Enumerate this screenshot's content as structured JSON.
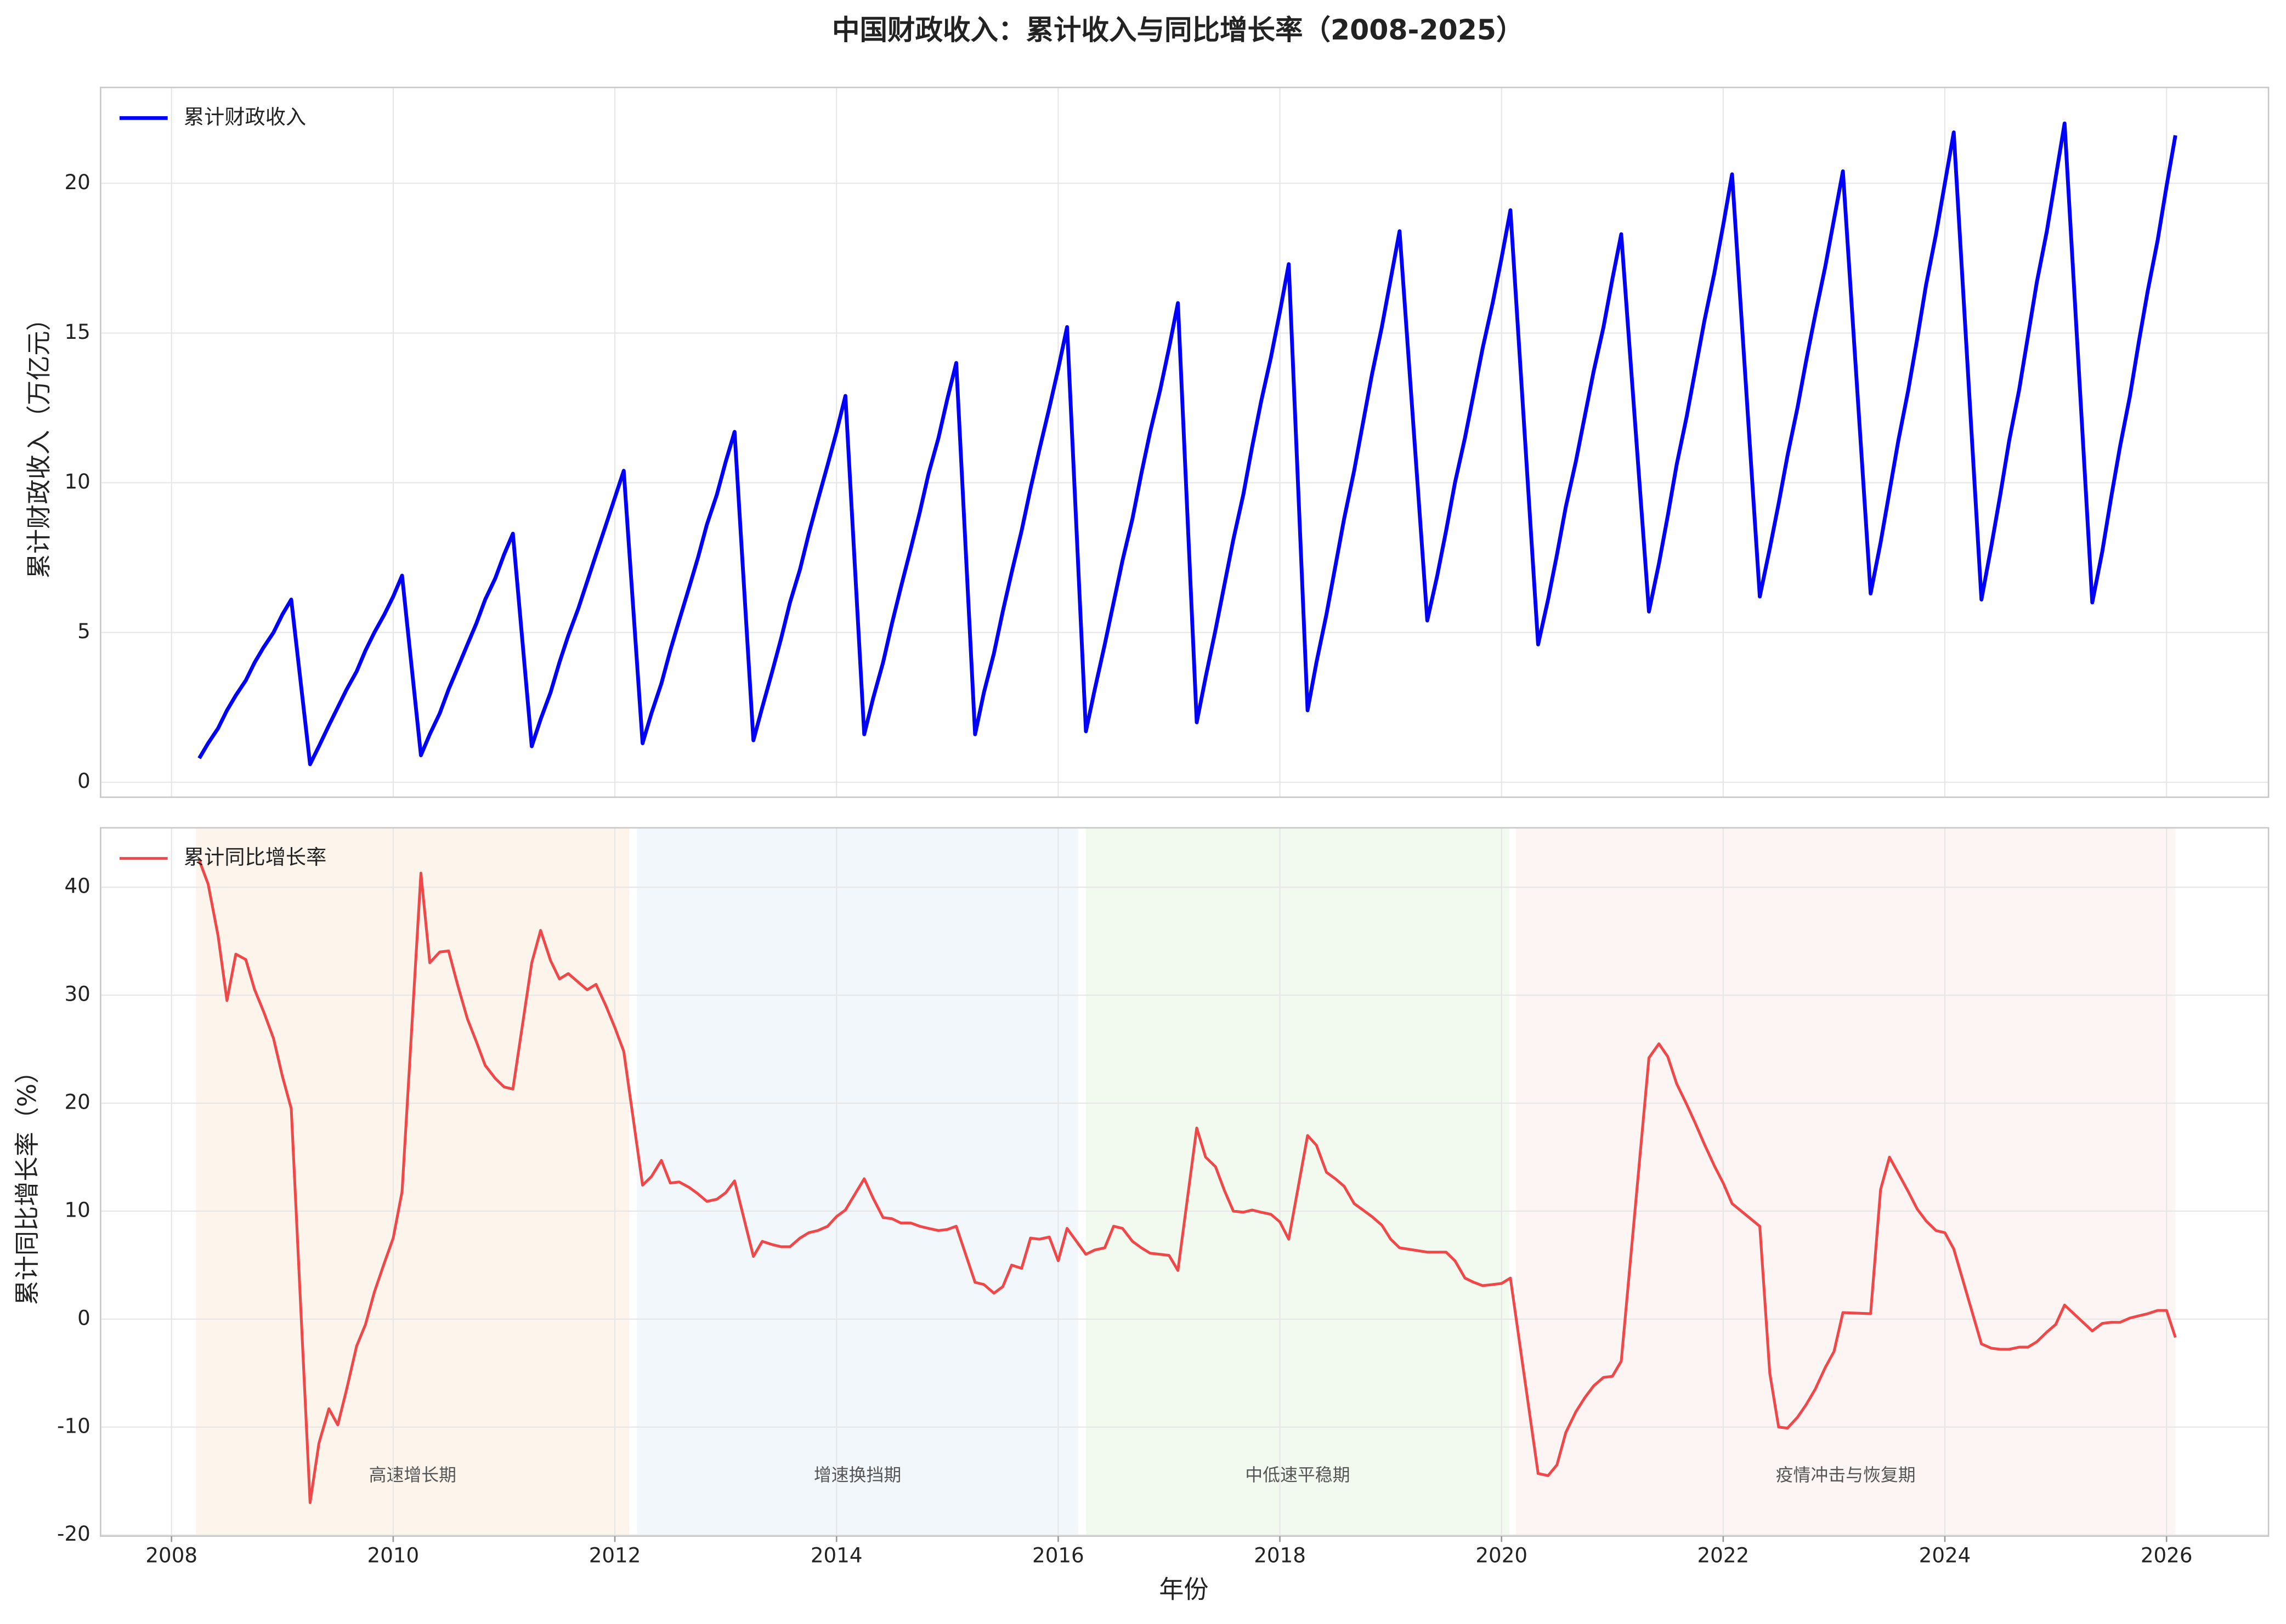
{
  "chart_data": {
    "type": "line",
    "title": "中国财政收入：累计收入与同比增长率（2008-2025）",
    "xlabel": "年份",
    "xlim": [
      2007.36,
      2026.92
    ],
    "xticks": [
      2008,
      2010,
      2012,
      2014,
      2016,
      2018,
      2020,
      2022,
      2024,
      2026
    ],
    "grid": true,
    "x": [
      2008.25,
      2008.33,
      2008.42,
      2008.5,
      2008.58,
      2008.67,
      2008.75,
      2008.83,
      2008.92,
      2009,
      2009.08,
      2009.25,
      2009.33,
      2009.42,
      2009.5,
      2009.58,
      2009.67,
      2009.75,
      2009.83,
      2009.92,
      2010,
      2010.08,
      2010.25,
      2010.33,
      2010.42,
      2010.5,
      2010.58,
      2010.67,
      2010.75,
      2010.83,
      2010.92,
      2011,
      2011.08,
      2011.25,
      2011.33,
      2011.42,
      2011.5,
      2011.58,
      2011.67,
      2011.75,
      2011.83,
      2011.92,
      2012,
      2012.08,
      2012.25,
      2012.33,
      2012.42,
      2012.5,
      2012.58,
      2012.67,
      2012.75,
      2012.83,
      2012.92,
      2013,
      2013.08,
      2013.25,
      2013.33,
      2013.42,
      2013.5,
      2013.58,
      2013.67,
      2013.75,
      2013.83,
      2013.92,
      2014,
      2014.08,
      2014.25,
      2014.33,
      2014.42,
      2014.5,
      2014.58,
      2014.67,
      2014.75,
      2014.83,
      2014.92,
      2015,
      2015.08,
      2015.25,
      2015.33,
      2015.42,
      2015.5,
      2015.58,
      2015.67,
      2015.75,
      2015.83,
      2015.92,
      2016,
      2016.08,
      2016.25,
      2016.33,
      2016.42,
      2016.5,
      2016.58,
      2016.67,
      2016.75,
      2016.83,
      2016.92,
      2017,
      2017.08,
      2017.25,
      2017.33,
      2017.42,
      2017.5,
      2017.58,
      2017.67,
      2017.75,
      2017.83,
      2017.92,
      2018,
      2018.08,
      2018.25,
      2018.33,
      2018.42,
      2018.5,
      2018.58,
      2018.67,
      2018.75,
      2018.83,
      2018.92,
      2019,
      2019.08,
      2019.33,
      2019.42,
      2019.5,
      2019.58,
      2019.67,
      2019.75,
      2019.83,
      2019.92,
      2020,
      2020.08,
      2020.33,
      2020.42,
      2020.5,
      2020.58,
      2020.67,
      2020.75,
      2020.83,
      2020.92,
      2021,
      2021.08,
      2021.33,
      2021.42,
      2021.5,
      2021.58,
      2021.67,
      2021.75,
      2021.83,
      2021.92,
      2022,
      2022.08,
      2022.33,
      2022.42,
      2022.5,
      2022.58,
      2022.67,
      2022.75,
      2022.83,
      2022.92,
      2023,
      2023.08,
      2023.33,
      2023.42,
      2023.5,
      2023.58,
      2023.67,
      2023.75,
      2023.83,
      2023.92,
      2024,
      2024.08,
      2024.33,
      2024.42,
      2024.5,
      2024.58,
      2024.67,
      2024.75,
      2024.83,
      2024.92,
      2025,
      2025.08,
      2025.33,
      2025.42,
      2025.5,
      2025.58,
      2025.67,
      2025.75,
      2025.83,
      2025.92,
      2026,
      2026.08
    ],
    "panels": [
      {
        "ylabel": "累计财政收入（万亿元）",
        "ylim": [
          -0.5,
          23.2
        ],
        "yticks": [
          0,
          5,
          10,
          15,
          20
        ],
        "legend": "upper left",
        "series": [
          {
            "name": "累计财政收入",
            "color": "#0000ff",
            "width": 2.6,
            "values": [
              0.8,
              1.3,
              1.8,
              2.4,
              2.9,
              3.4,
              4.0,
              4.5,
              5.0,
              5.6,
              6.1,
              0.6,
              1.2,
              1.9,
              2.5,
              3.1,
              3.7,
              4.4,
              5.0,
              5.6,
              6.2,
              6.9,
              0.9,
              1.6,
              2.3,
              3.1,
              3.8,
              4.6,
              5.3,
              6.1,
              6.8,
              7.6,
              8.3,
              1.2,
              2.1,
              3.0,
              4.0,
              4.9,
              5.8,
              6.7,
              7.6,
              8.6,
              9.5,
              10.4,
              1.3,
              2.3,
              3.3,
              4.4,
              5.4,
              6.5,
              7.5,
              8.6,
              9.6,
              10.7,
              11.7,
              1.4,
              2.5,
              3.7,
              4.8,
              6.0,
              7.1,
              8.3,
              9.4,
              10.6,
              11.7,
              12.9,
              1.6,
              2.8,
              4.0,
              5.3,
              6.5,
              7.8,
              9.0,
              10.3,
              11.5,
              12.8,
              14.0,
              1.6,
              3.0,
              4.3,
              5.7,
              7.0,
              8.4,
              9.8,
              11.1,
              12.5,
              13.8,
              15.2,
              1.7,
              3.1,
              4.6,
              6.0,
              7.4,
              8.8,
              10.3,
              11.7,
              13.1,
              14.5,
              16.0,
              2.0,
              3.5,
              5.1,
              6.6,
              8.1,
              9.6,
              11.2,
              12.7,
              14.2,
              15.7,
              17.3,
              2.4,
              4.0,
              5.6,
              7.2,
              8.8,
              10.4,
              12.0,
              13.6,
              15.2,
              16.8,
              18.4,
              5.4,
              6.9,
              8.4,
              10.0,
              11.5,
              13.0,
              14.5,
              16.0,
              17.5,
              19.1,
              4.6,
              6.1,
              7.6,
              9.2,
              10.7,
              12.2,
              13.7,
              15.2,
              16.8,
              18.3,
              5.7,
              7.3,
              8.9,
              10.6,
              12.2,
              13.8,
              15.4,
              17.0,
              18.6,
              20.3,
              6.2,
              7.8,
              9.3,
              10.9,
              12.5,
              14.1,
              15.6,
              17.2,
              18.8,
              20.4,
              6.3,
              8.0,
              9.7,
              11.4,
              13.1,
              14.8,
              16.6,
              18.3,
              20.0,
              21.7,
              6.1,
              7.9,
              9.6,
              11.4,
              13.1,
              14.9,
              16.7,
              18.4,
              20.2,
              22.0,
              6.0,
              7.7,
              9.5,
              11.2,
              12.9,
              14.7,
              16.4,
              18.1,
              19.9,
              21.6
            ]
          }
        ]
      },
      {
        "ylabel": "累计同比增长率（%）",
        "ylim": [
          -20.1,
          45.5
        ],
        "yticks": [
          -20,
          -10,
          0,
          10,
          20,
          30,
          40
        ],
        "legend": "upper left",
        "regions": [
          {
            "label": "高速增长期",
            "start": 2008.22,
            "end": 2012.13,
            "color": "#fdf5ec"
          },
          {
            "label": "增速换挡期",
            "start": 2012.2,
            "end": 2016.18,
            "color": "#f2f7fc"
          },
          {
            "label": "中低速平稳期",
            "start": 2016.25,
            "end": 2020.07,
            "color": "#f2faf0"
          },
          {
            "label": "疫情冲击与恢复期",
            "start": 2020.13,
            "end": 2026.08,
            "color": "#fcf5f3"
          }
        ],
        "series": [
          {
            "name": "累计同比增长率",
            "color": "#f04848",
            "width": 1.9,
            "values": [
              42.5,
              40.3,
              35.5,
              29.5,
              33.8,
              33.3,
              30.5,
              28.5,
              26,
              22.5,
              19.5,
              -17,
              -11.5,
              -8.3,
              -9.8,
              -6.5,
              -2.5,
              -0.5,
              2.5,
              5.2,
              7.5,
              11.8,
              41.3,
              33,
              34,
              34.1,
              31,
              27.8,
              25.7,
              23.5,
              22.3,
              21.5,
              21.3,
              33,
              36,
              33.2,
              31.5,
              32,
              31.2,
              30.5,
              31,
              29,
              27,
              24.8,
              12.4,
              13.2,
              14.7,
              12.6,
              12.7,
              12.2,
              11.6,
              10.9,
              11.1,
              11.7,
              12.8,
              5.8,
              7.2,
              6.9,
              6.7,
              6.7,
              7.5,
              8.0,
              8.2,
              8.6,
              9.5,
              10.1,
              13.0,
              11.2,
              9.4,
              9.3,
              8.9,
              8.9,
              8.6,
              8.4,
              8.2,
              8.3,
              8.6,
              3.4,
              3.2,
              2.4,
              3.0,
              5.0,
              4.7,
              7.5,
              7.4,
              7.6,
              5.4,
              8.4,
              6.0,
              6.4,
              6.6,
              8.6,
              8.4,
              7.2,
              6.6,
              6.1,
              6.0,
              5.9,
              4.5,
              17.7,
              15.0,
              14.1,
              11.9,
              10.0,
              9.9,
              10.1,
              9.9,
              9.7,
              9.0,
              7.4,
              17,
              16.1,
              13.6,
              13,
              12.3,
              10.7,
              10.1,
              9.5,
              8.7,
              7.4,
              6.6,
              6.2,
              6.2,
              6.2,
              5.4,
              3.8,
              3.4,
              3.1,
              3.2,
              3.3,
              3.8,
              -14.3,
              -14.5,
              -13.5,
              -10.5,
              -8.6,
              -7.3,
              -6.2,
              -5.4,
              -5.3,
              -3.9,
              24.2,
              25.5,
              24.3,
              21.8,
              19.9,
              18.1,
              16.2,
              14.2,
              12.6,
              10.7,
              8.6,
              -5,
              -10,
              -10.1,
              -9.1,
              -7.9,
              -6.5,
              -4.5,
              -3.0,
              0.6,
              0.5,
              12,
              15,
              13.5,
              11.8,
              10.2,
              9.1,
              8.2,
              8.0,
              6.5,
              -2.3,
              -2.7,
              -2.8,
              -2.8,
              -2.6,
              -2.6,
              -2.1,
              -1.2,
              -0.5,
              1.3,
              -1.1,
              -0.4,
              -0.3,
              -0.3,
              0.1,
              0.3,
              0.5,
              0.8,
              0.8,
              -1.7
            ]
          }
        ]
      }
    ]
  }
}
